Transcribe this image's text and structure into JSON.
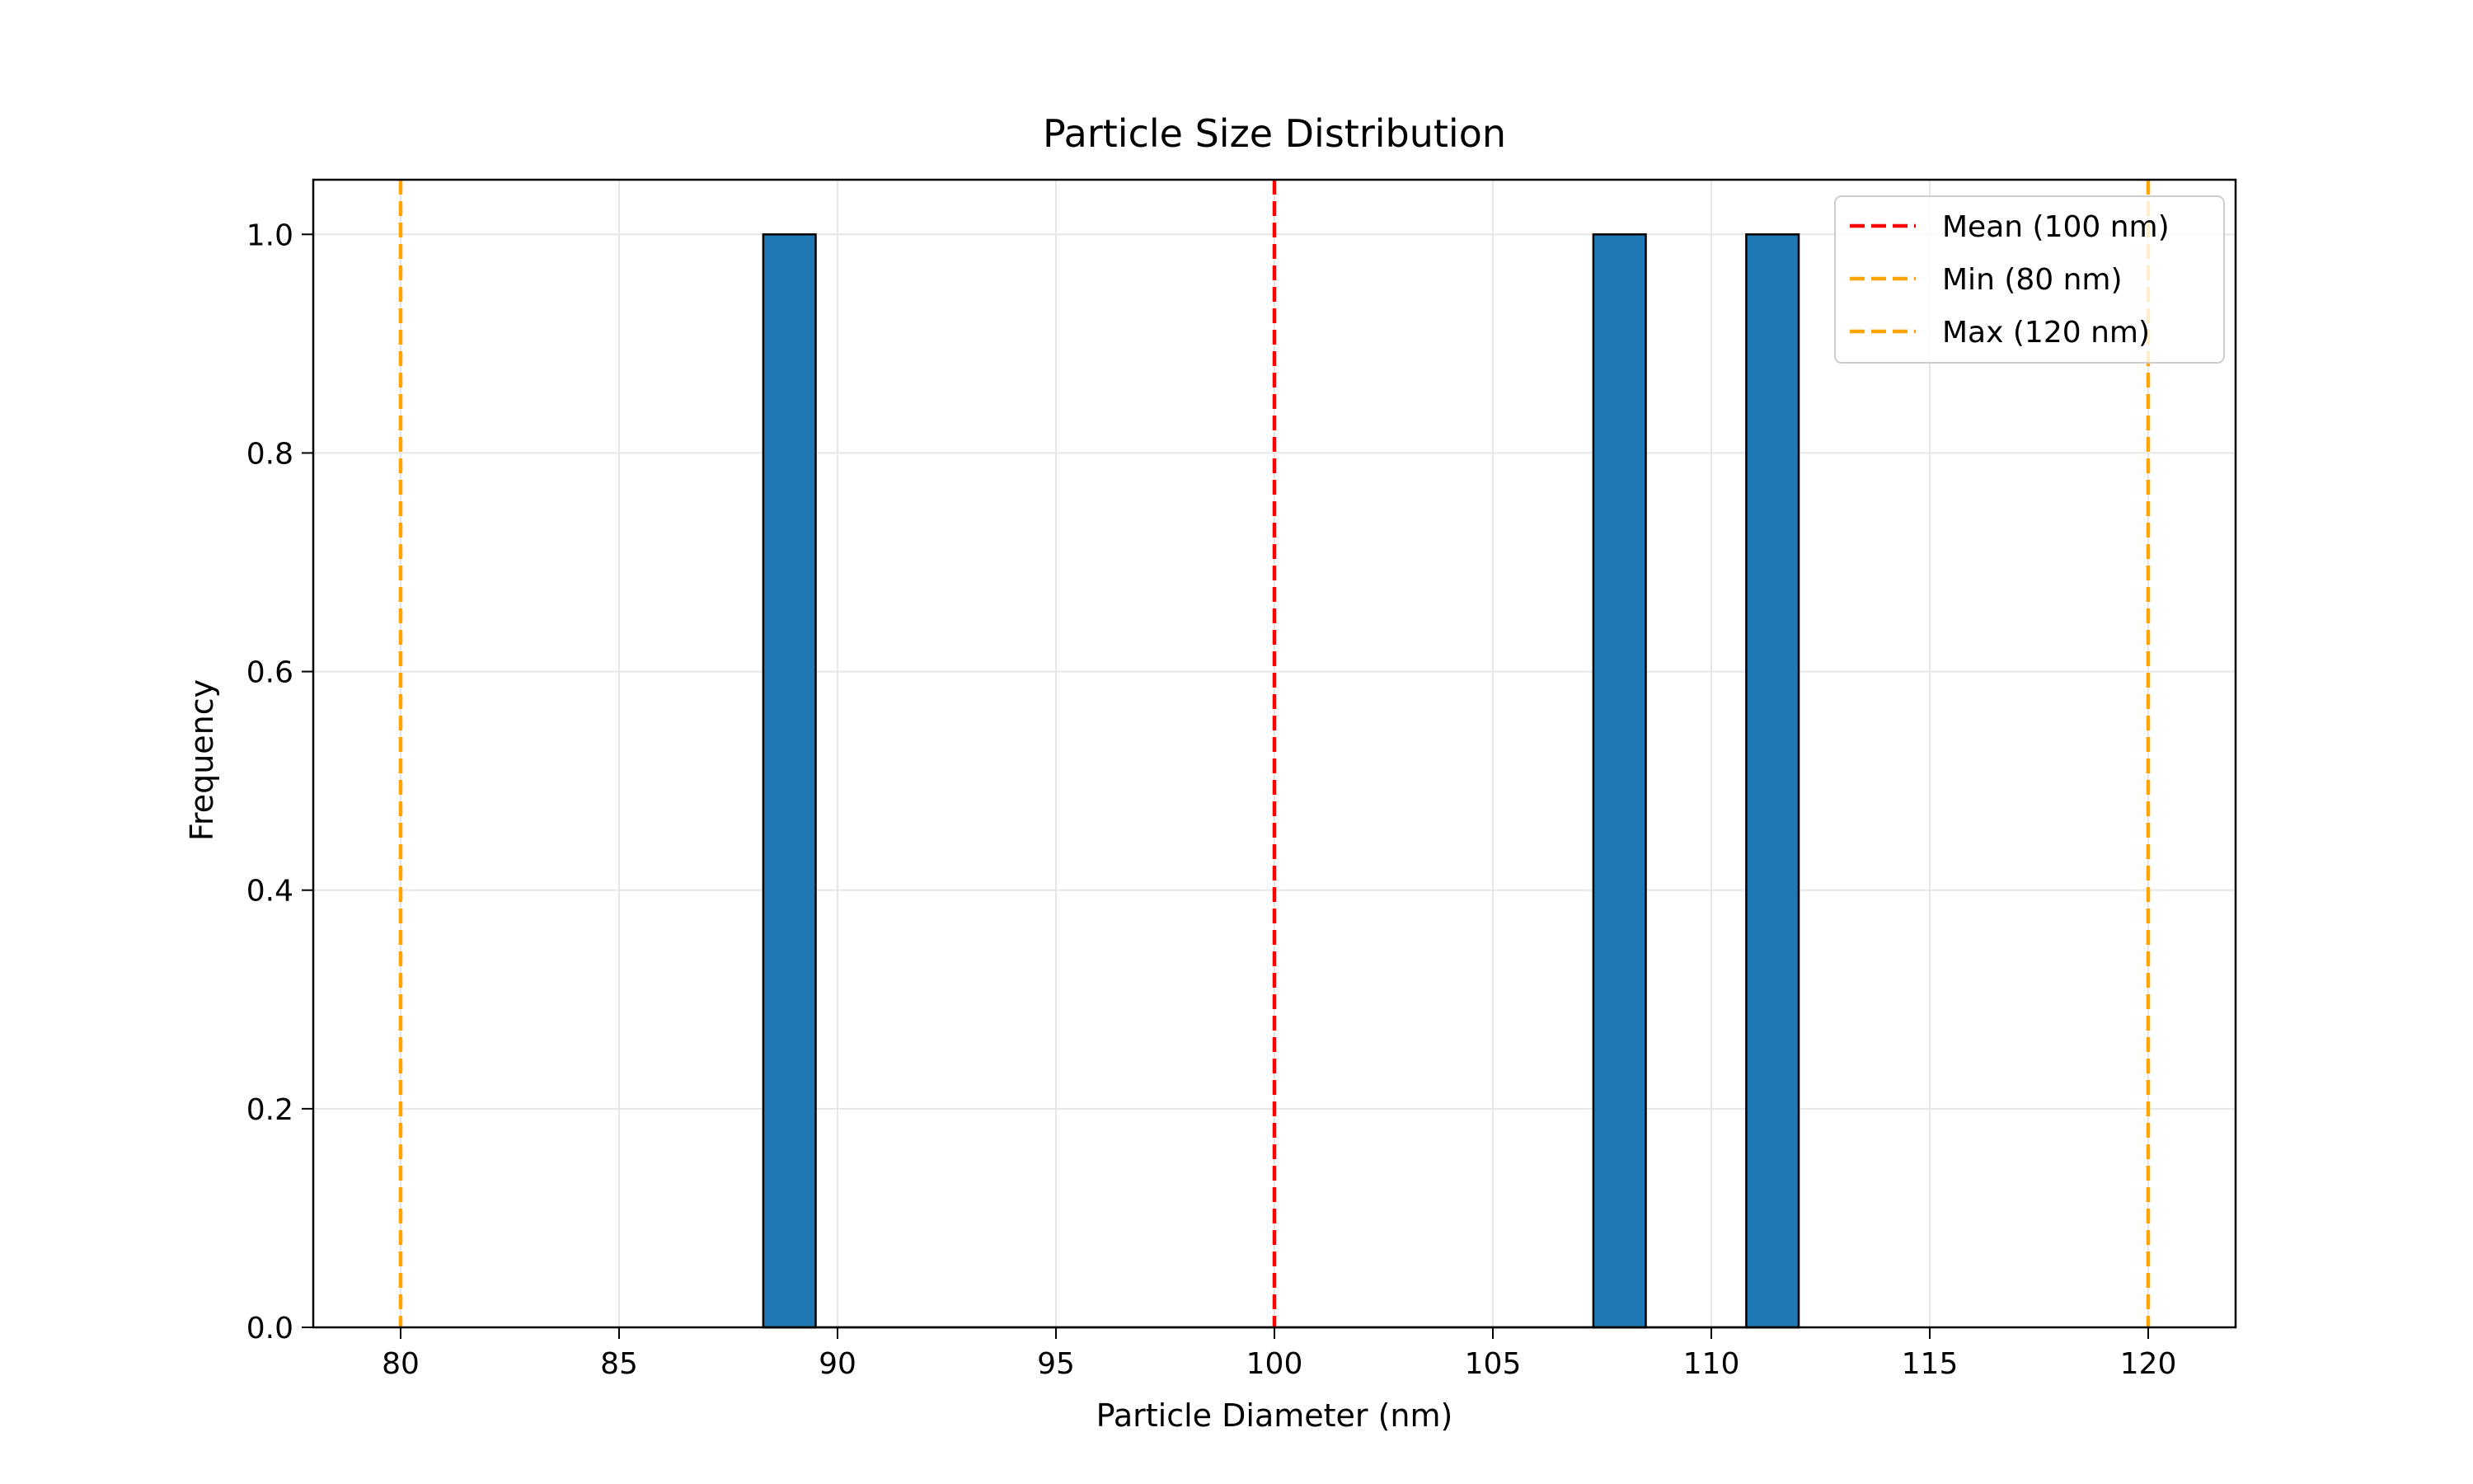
{
  "chart_data": {
    "type": "bar",
    "title": "Particle Size Distribution",
    "xlabel": "Particle Diameter (nm)",
    "ylabel": "Frequency",
    "xlim": [
      78,
      122
    ],
    "ylim": [
      0,
      1.05
    ],
    "x_ticks": [
      80,
      85,
      90,
      95,
      100,
      105,
      110,
      115,
      120
    ],
    "y_ticks": [
      "0.0",
      "0.2",
      "0.4",
      "0.6",
      "0.8",
      "1.0"
    ],
    "grid": true,
    "bin_edges": [
      88.3,
      89.5,
      107.3,
      108.5,
      110.8,
      112.0
    ],
    "bars": [
      {
        "x0": 88.3,
        "x1": 89.5,
        "value": 1
      },
      {
        "x0": 107.3,
        "x1": 108.5,
        "value": 1
      },
      {
        "x0": 110.8,
        "x1": 112.0,
        "value": 1
      }
    ],
    "baseline": {
      "x0": 88.3,
      "x1": 112.0,
      "value": 0
    },
    "bar_color": "#1f77b4",
    "reference_lines": [
      {
        "x": 100,
        "label": "Mean (100 nm)",
        "color": "#ff0000"
      },
      {
        "x": 80,
        "label": "Min (80 nm)",
        "color": "#ffa500"
      },
      {
        "x": 120,
        "label": "Max (120 nm)",
        "color": "#ffa500"
      }
    ],
    "legend_position": "top-right"
  }
}
